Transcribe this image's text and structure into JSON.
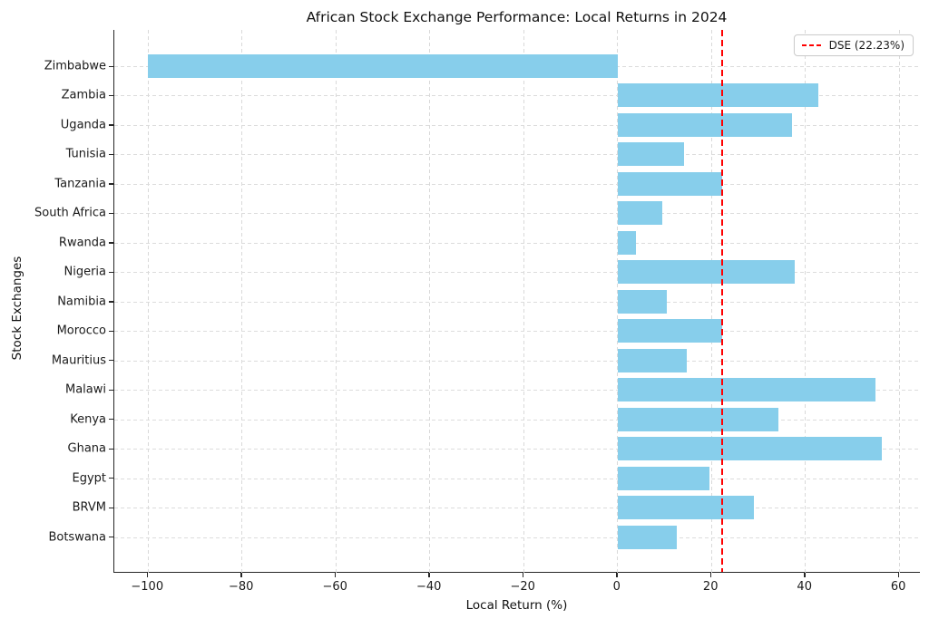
{
  "chart_data": {
    "type": "bar",
    "orientation": "horizontal",
    "title": "African Stock Exchange Performance: Local Returns in 2024",
    "xlabel": "Local Return (%)",
    "ylabel": "Stock Exchanges",
    "categories": [
      "Zimbabwe",
      "Zambia",
      "Uganda",
      "Tunisia",
      "Tanzania",
      "South Africa",
      "Rwanda",
      "Nigeria",
      "Namibia",
      "Morocco",
      "Mauritius",
      "Malawi",
      "Kenya",
      "Ghana",
      "Egypt",
      "BRVM",
      "Botswana"
    ],
    "values": [
      -100.0,
      42.8,
      37.1,
      14.1,
      22.23,
      9.6,
      3.9,
      37.7,
      10.4,
      22.2,
      14.8,
      55.0,
      34.2,
      56.2,
      19.5,
      29.0,
      12.7
    ],
    "x_ticks": [
      -100,
      -80,
      -60,
      -40,
      -20,
      0,
      20,
      40,
      60
    ],
    "x_tick_labels": [
      "−100",
      "−80",
      "−60",
      "−40",
      "−20",
      "0",
      "20",
      "40",
      "60"
    ],
    "xlim": [
      -107.2,
      64.6
    ],
    "bar_color": "#87ceeb",
    "grid": true,
    "legend_position": "upper right",
    "reference_line": {
      "label": "DSE (22.23%)",
      "value": 22.23,
      "color": "#ff0000",
      "style": "dashed"
    }
  }
}
